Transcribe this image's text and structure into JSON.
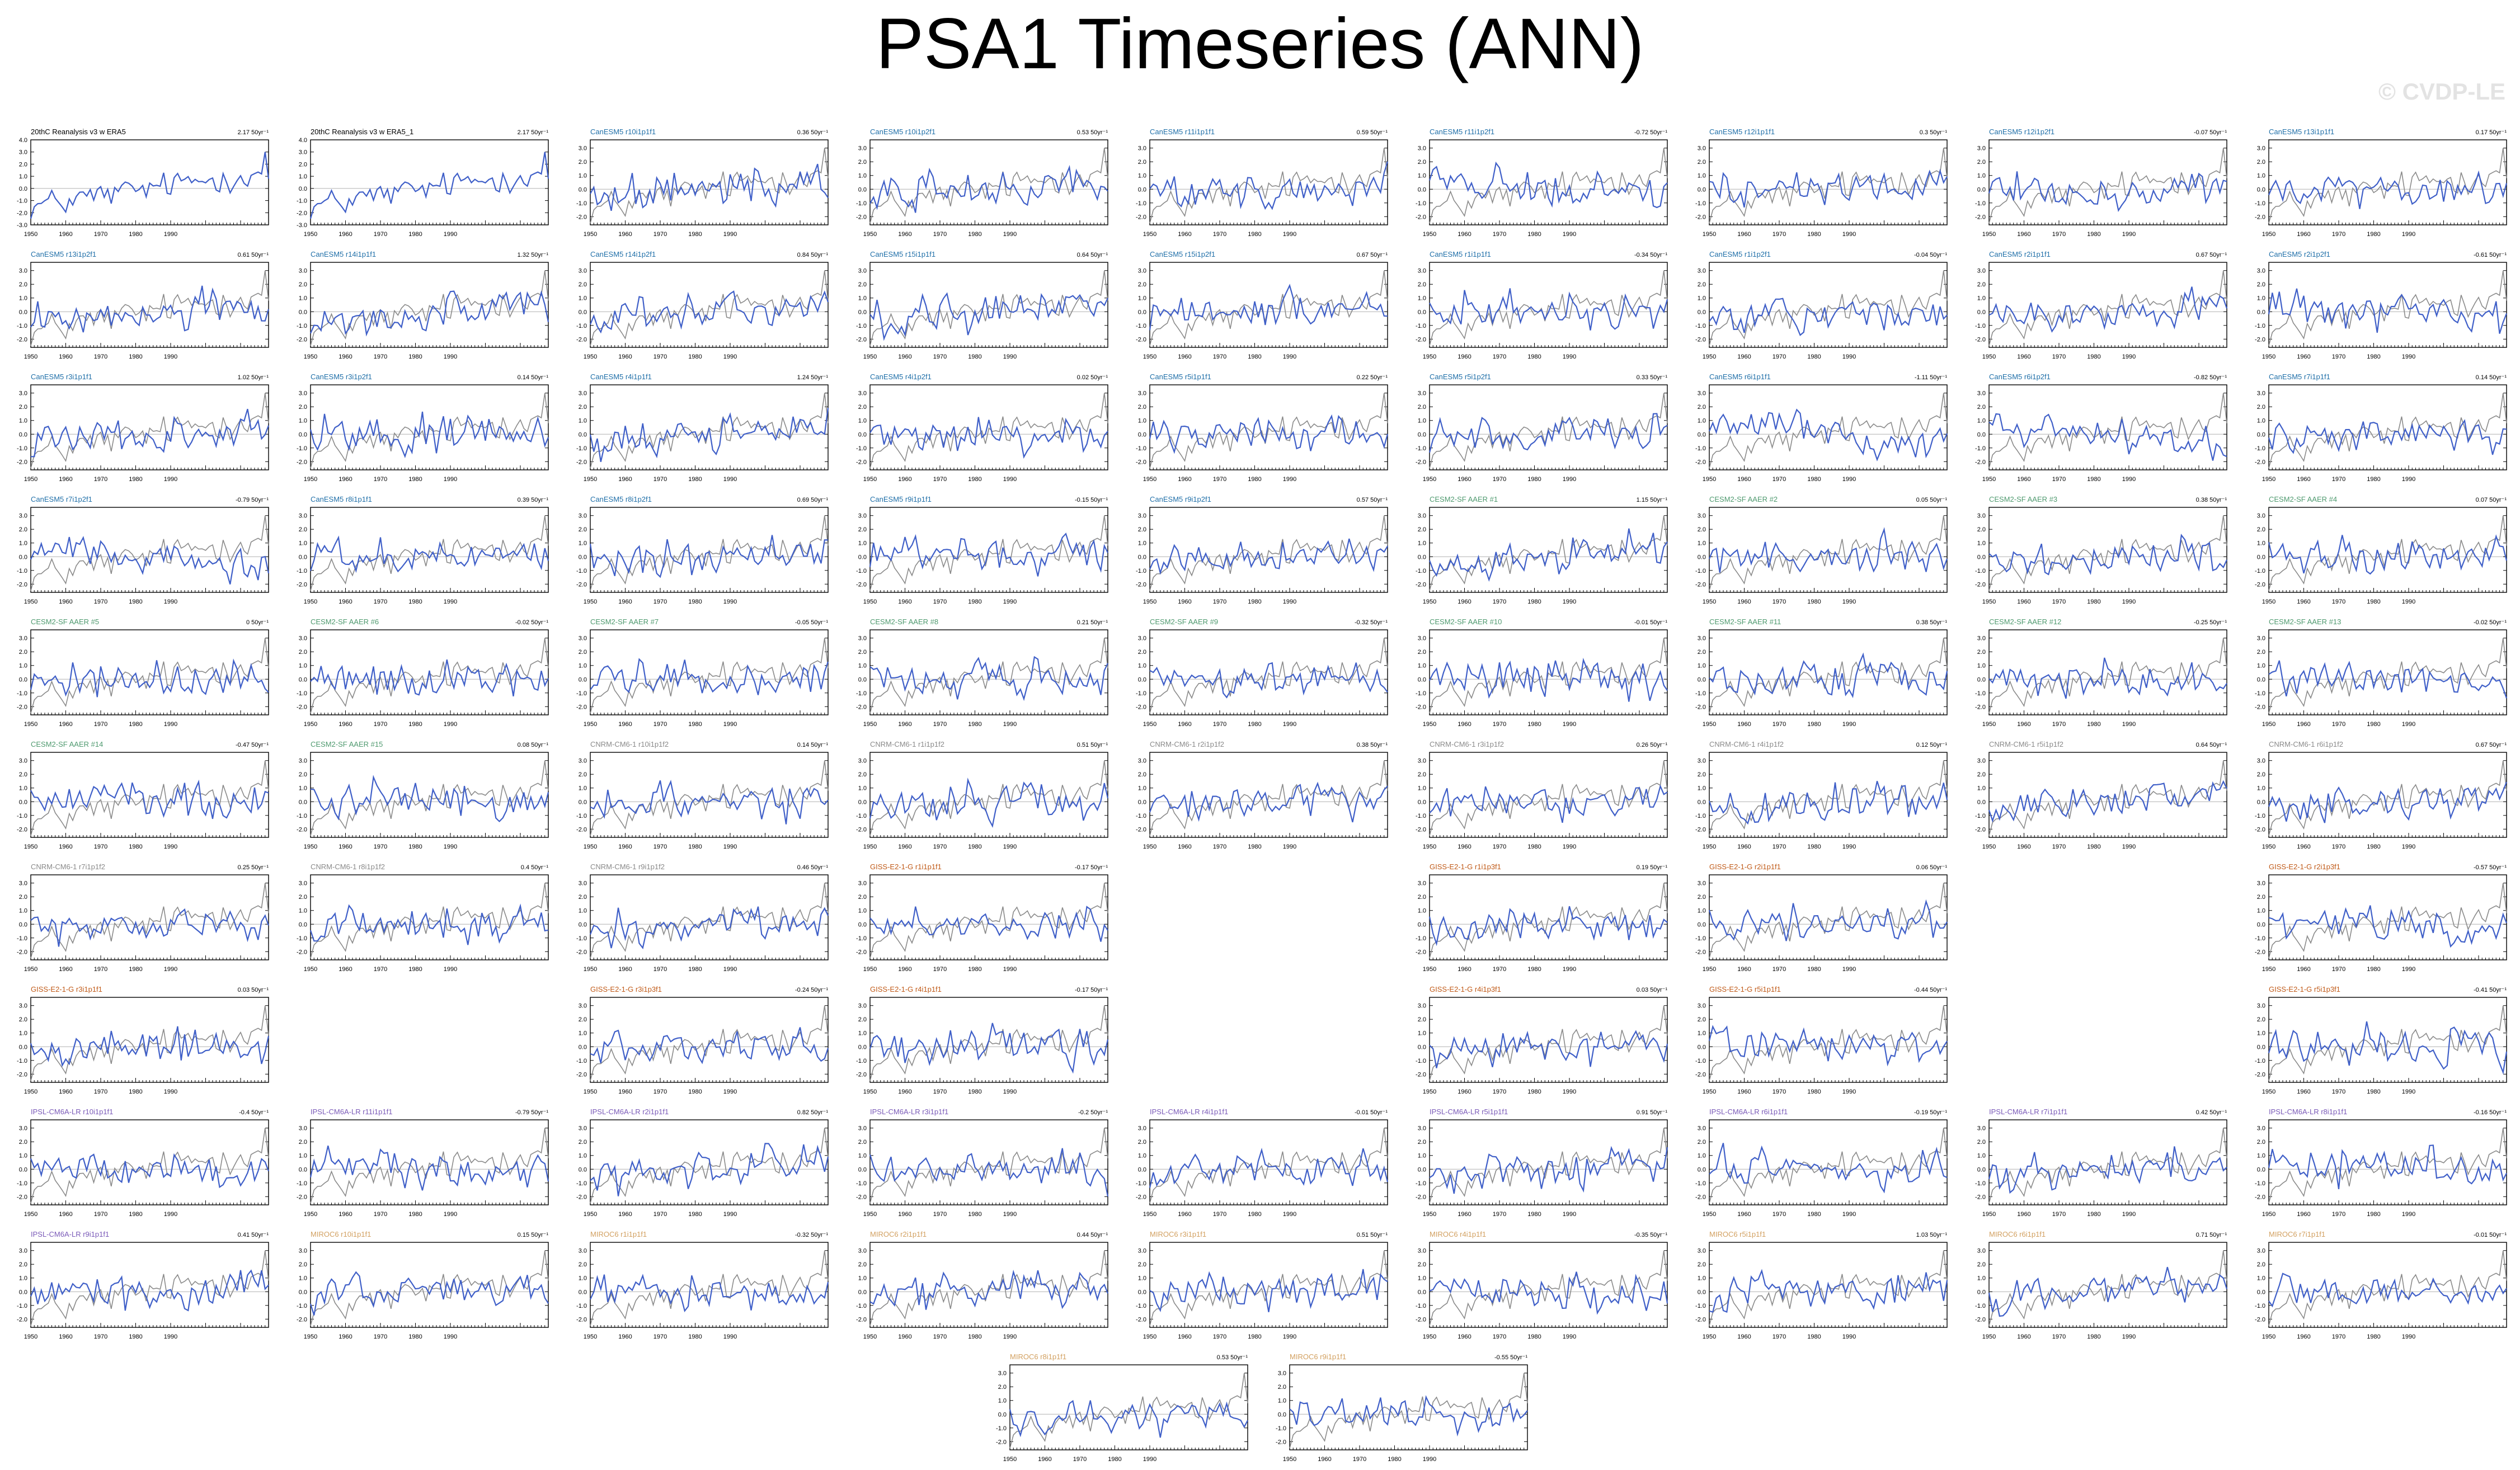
{
  "title": "PSA1 Timeseries (ANN)",
  "watermark": "© CVDP-LE",
  "colors": {
    "model_line": "#3f5fc8",
    "obs_line": "#8a8a8a",
    "CanESM5": "#1f6fa8",
    "CESM2-SF AAER": "#4f9a6f",
    "CNRM-CM6-1": "#8a8a8a",
    "GISS-E2-1-G": "#c05a18",
    "IPSL-CM6A-LR": "#7a5ab8",
    "MIROC6": "#d2a060",
    "obs": "#000000"
  },
  "chart_data": {
    "type": "line",
    "years": [
      1950,
      2018
    ],
    "x_ticks": [
      1950,
      1960,
      1970,
      1980,
      1990
    ],
    "y_ticks_full": [
      "4.0",
      "3.0",
      "2.0",
      "1.0",
      "0.0",
      "-1.0",
      "-2.0",
      "-3.0"
    ],
    "panels": [
      {
        "title": "20thC Reanalysis v3 w ERA5",
        "trend": "2.17 50yr⁻¹",
        "group": "obs",
        "row": 0,
        "col": 0,
        "ylim": [
          -3,
          4
        ]
      },
      {
        "title": "20thC Reanalysis v3 w ERA5_1",
        "trend": "2.17 50yr⁻¹",
        "group": "obs",
        "row": 0,
        "col": 1,
        "ylim": [
          -3,
          4
        ]
      },
      {
        "title": "CanESM5 r10i1p1f1",
        "trend": "0.36 50yr⁻¹",
        "group": "CanESM5",
        "row": 0,
        "col": 2
      },
      {
        "title": "CanESM5 r10i1p2f1",
        "trend": "0.53 50yr⁻¹",
        "group": "CanESM5",
        "row": 0,
        "col": 3
      },
      {
        "title": "CanESM5 r11i1p1f1",
        "trend": "0.59 50yr⁻¹",
        "group": "CanESM5",
        "row": 0,
        "col": 4
      },
      {
        "title": "CanESM5 r11i1p2f1",
        "trend": "-0.72 50yr⁻¹",
        "group": "CanESM5",
        "row": 0,
        "col": 5
      },
      {
        "title": "CanESM5 r12i1p1f1",
        "trend": "0.3 50yr⁻¹",
        "group": "CanESM5",
        "row": 0,
        "col": 6
      },
      {
        "title": "CanESM5 r12i1p2f1",
        "trend": "-0.07 50yr⁻¹",
        "group": "CanESM5",
        "row": 0,
        "col": 7
      },
      {
        "title": "CanESM5 r13i1p1f1",
        "trend": "0.17 50yr⁻¹",
        "group": "CanESM5",
        "row": 0,
        "col": 8
      },
      {
        "title": "CanESM5 r13i1p2f1",
        "trend": "0.61 50yr⁻¹",
        "group": "CanESM5",
        "row": 1,
        "col": 0
      },
      {
        "title": "CanESM5 r14i1p1f1",
        "trend": "1.32 50yr⁻¹",
        "group": "CanESM5",
        "row": 1,
        "col": 1
      },
      {
        "title": "CanESM5 r14i1p2f1",
        "trend": "0.84 50yr⁻¹",
        "group": "CanESM5",
        "row": 1,
        "col": 2
      },
      {
        "title": "CanESM5 r15i1p1f1",
        "trend": "0.64 50yr⁻¹",
        "group": "CanESM5",
        "row": 1,
        "col": 3
      },
      {
        "title": "CanESM5 r15i1p2f1",
        "trend": "0.67 50yr⁻¹",
        "group": "CanESM5",
        "row": 1,
        "col": 4
      },
      {
        "title": "CanESM5 r1i1p1f1",
        "trend": "-0.34 50yr⁻¹",
        "group": "CanESM5",
        "row": 1,
        "col": 5
      },
      {
        "title": "CanESM5 r1i1p2f1",
        "trend": "-0.04 50yr⁻¹",
        "group": "CanESM5",
        "row": 1,
        "col": 6
      },
      {
        "title": "CanESM5 r2i1p1f1",
        "trend": "0.67 50yr⁻¹",
        "group": "CanESM5",
        "row": 1,
        "col": 7
      },
      {
        "title": "CanESM5 r2i1p2f1",
        "trend": "-0.61 50yr⁻¹",
        "group": "CanESM5",
        "row": 1,
        "col": 8
      },
      {
        "title": "CanESM5 r3i1p1f1",
        "trend": "1.02 50yr⁻¹",
        "group": "CanESM5",
        "row": 2,
        "col": 0
      },
      {
        "title": "CanESM5 r3i1p2f1",
        "trend": "0.14 50yr⁻¹",
        "group": "CanESM5",
        "row": 2,
        "col": 1
      },
      {
        "title": "CanESM5 r4i1p1f1",
        "trend": "1.24 50yr⁻¹",
        "group": "CanESM5",
        "row": 2,
        "col": 2
      },
      {
        "title": "CanESM5 r4i1p2f1",
        "trend": "0.02 50yr⁻¹",
        "group": "CanESM5",
        "row": 2,
        "col": 3
      },
      {
        "title": "CanESM5 r5i1p1f1",
        "trend": "0.22 50yr⁻¹",
        "group": "CanESM5",
        "row": 2,
        "col": 4
      },
      {
        "title": "CanESM5 r5i1p2f1",
        "trend": "0.33 50yr⁻¹",
        "group": "CanESM5",
        "row": 2,
        "col": 5
      },
      {
        "title": "CanESM5 r6i1p1f1",
        "trend": "-1.11 50yr⁻¹",
        "group": "CanESM5",
        "row": 2,
        "col": 6
      },
      {
        "title": "CanESM5 r6i1p2f1",
        "trend": "-0.82 50yr⁻¹",
        "group": "CanESM5",
        "row": 2,
        "col": 7
      },
      {
        "title": "CanESM5 r7i1p1f1",
        "trend": "0.14 50yr⁻¹",
        "group": "CanESM5",
        "row": 2,
        "col": 8
      },
      {
        "title": "CanESM5 r7i1p2f1",
        "trend": "-0.79 50yr⁻¹",
        "group": "CanESM5",
        "row": 3,
        "col": 0
      },
      {
        "title": "CanESM5 r8i1p1f1",
        "trend": "0.39 50yr⁻¹",
        "group": "CanESM5",
        "row": 3,
        "col": 1
      },
      {
        "title": "CanESM5 r8i1p2f1",
        "trend": "0.69 50yr⁻¹",
        "group": "CanESM5",
        "row": 3,
        "col": 2
      },
      {
        "title": "CanESM5 r9i1p1f1",
        "trend": "-0.15 50yr⁻¹",
        "group": "CanESM5",
        "row": 3,
        "col": 3
      },
      {
        "title": "CanESM5 r9i1p2f1",
        "trend": "0.57 50yr⁻¹",
        "group": "CanESM5",
        "row": 3,
        "col": 4
      },
      {
        "title": "CESM2-SF AAER #1",
        "trend": "1.15 50yr⁻¹",
        "group": "CESM2-SF AAER",
        "row": 3,
        "col": 5
      },
      {
        "title": "CESM2-SF AAER #2",
        "trend": "0.05 50yr⁻¹",
        "group": "CESM2-SF AAER",
        "row": 3,
        "col": 6
      },
      {
        "title": "CESM2-SF AAER #3",
        "trend": "0.38 50yr⁻¹",
        "group": "CESM2-SF AAER",
        "row": 3,
        "col": 7
      },
      {
        "title": "CESM2-SF AAER #4",
        "trend": "0.07 50yr⁻¹",
        "group": "CESM2-SF AAER",
        "row": 3,
        "col": 8
      },
      {
        "title": "CESM2-SF AAER #5",
        "trend": "0 50yr⁻¹",
        "group": "CESM2-SF AAER",
        "row": 4,
        "col": 0
      },
      {
        "title": "CESM2-SF AAER #6",
        "trend": "-0.02 50yr⁻¹",
        "group": "CESM2-SF AAER",
        "row": 4,
        "col": 1
      },
      {
        "title": "CESM2-SF AAER #7",
        "trend": "-0.05 50yr⁻¹",
        "group": "CESM2-SF AAER",
        "row": 4,
        "col": 2
      },
      {
        "title": "CESM2-SF AAER #8",
        "trend": "0.21 50yr⁻¹",
        "group": "CESM2-SF AAER",
        "row": 4,
        "col": 3
      },
      {
        "title": "CESM2-SF AAER #9",
        "trend": "-0.32 50yr⁻¹",
        "group": "CESM2-SF AAER",
        "row": 4,
        "col": 4
      },
      {
        "title": "CESM2-SF AAER #10",
        "trend": "-0.01 50yr⁻¹",
        "group": "CESM2-SF AAER",
        "row": 4,
        "col": 5
      },
      {
        "title": "CESM2-SF AAER #11",
        "trend": "0.38 50yr⁻¹",
        "group": "CESM2-SF AAER",
        "row": 4,
        "col": 6
      },
      {
        "title": "CESM2-SF AAER #12",
        "trend": "-0.25 50yr⁻¹",
        "group": "CESM2-SF AAER",
        "row": 4,
        "col": 7
      },
      {
        "title": "CESM2-SF AAER #13",
        "trend": "-0.02 50yr⁻¹",
        "group": "CESM2-SF AAER",
        "row": 4,
        "col": 8
      },
      {
        "title": "CESM2-SF AAER #14",
        "trend": "-0.47 50yr⁻¹",
        "group": "CESM2-SF AAER",
        "row": 5,
        "col": 0
      },
      {
        "title": "CESM2-SF AAER #15",
        "trend": "0.08 50yr⁻¹",
        "group": "CESM2-SF AAER",
        "row": 5,
        "col": 1
      },
      {
        "title": "CNRM-CM6-1 r10i1p1f2",
        "trend": "0.14 50yr⁻¹",
        "group": "CNRM-CM6-1",
        "row": 5,
        "col": 2
      },
      {
        "title": "CNRM-CM6-1 r1i1p1f2",
        "trend": "0.51 50yr⁻¹",
        "group": "CNRM-CM6-1",
        "row": 5,
        "col": 3
      },
      {
        "title": "CNRM-CM6-1 r2i1p1f2",
        "trend": "0.38 50yr⁻¹",
        "group": "CNRM-CM6-1",
        "row": 5,
        "col": 4
      },
      {
        "title": "CNRM-CM6-1 r3i1p1f2",
        "trend": "0.26 50yr⁻¹",
        "group": "CNRM-CM6-1",
        "row": 5,
        "col": 5
      },
      {
        "title": "CNRM-CM6-1 r4i1p1f2",
        "trend": "0.12 50yr⁻¹",
        "group": "CNRM-CM6-1",
        "row": 5,
        "col": 6
      },
      {
        "title": "CNRM-CM6-1 r5i1p1f2",
        "trend": "0.64 50yr⁻¹",
        "group": "CNRM-CM6-1",
        "row": 5,
        "col": 7
      },
      {
        "title": "CNRM-CM6-1 r6i1p1f2",
        "trend": "0.67 50yr⁻¹",
        "group": "CNRM-CM6-1",
        "row": 5,
        "col": 8
      },
      {
        "title": "CNRM-CM6-1 r7i1p1f2",
        "trend": "0.25 50yr⁻¹",
        "group": "CNRM-CM6-1",
        "row": 6,
        "col": 0
      },
      {
        "title": "CNRM-CM6-1 r8i1p1f2",
        "trend": "0.4 50yr⁻¹",
        "group": "CNRM-CM6-1",
        "row": 6,
        "col": 1
      },
      {
        "title": "CNRM-CM6-1 r9i1p1f2",
        "trend": "0.46 50yr⁻¹",
        "group": "CNRM-CM6-1",
        "row": 6,
        "col": 2
      },
      {
        "title": "GISS-E2-1-G r1i1p1f1",
        "trend": "-0.17 50yr⁻¹",
        "group": "GISS-E2-1-G",
        "row": 6,
        "col": 3
      },
      {
        "title": "GISS-E2-1-G r1i1p3f1",
        "trend": "0.19 50yr⁻¹",
        "group": "GISS-E2-1-G",
        "row": 6,
        "col": 5
      },
      {
        "title": "GISS-E2-1-G r2i1p1f1",
        "trend": "0.06 50yr⁻¹",
        "group": "GISS-E2-1-G",
        "row": 6,
        "col": 6
      },
      {
        "title": "GISS-E2-1-G r2i1p3f1",
        "trend": "-0.57 50yr⁻¹",
        "group": "GISS-E2-1-G",
        "row": 6,
        "col": 8
      },
      {
        "title": "GISS-E2-1-G r3i1p1f1",
        "trend": "0.03 50yr⁻¹",
        "group": "GISS-E2-1-G",
        "row": 7,
        "col": 0
      },
      {
        "title": "GISS-E2-1-G r3i1p3f1",
        "trend": "-0.24 50yr⁻¹",
        "group": "GISS-E2-1-G",
        "row": 7,
        "col": 2
      },
      {
        "title": "GISS-E2-1-G r4i1p1f1",
        "trend": "-0.17 50yr⁻¹",
        "group": "GISS-E2-1-G",
        "row": 7,
        "col": 3
      },
      {
        "title": "GISS-E2-1-G r4i1p3f1",
        "trend": "0.03 50yr⁻¹",
        "group": "GISS-E2-1-G",
        "row": 7,
        "col": 5
      },
      {
        "title": "GISS-E2-1-G r5i1p1f1",
        "trend": "-0.44 50yr⁻¹",
        "group": "GISS-E2-1-G",
        "row": 7,
        "col": 6
      },
      {
        "title": "GISS-E2-1-G r5i1p3f1",
        "trend": "-0.41 50yr⁻¹",
        "group": "GISS-E2-1-G",
        "row": 7,
        "col": 8
      },
      {
        "title": "IPSL-CM6A-LR r10i1p1f1",
        "trend": "-0.4 50yr⁻¹",
        "group": "IPSL-CM6A-LR",
        "row": 8,
        "col": 0
      },
      {
        "title": "IPSL-CM6A-LR r11i1p1f1",
        "trend": "-0.79 50yr⁻¹",
        "group": "IPSL-CM6A-LR",
        "row": 8,
        "col": 1
      },
      {
        "title": "IPSL-CM6A-LR r2i1p1f1",
        "trend": "0.82 50yr⁻¹",
        "group": "IPSL-CM6A-LR",
        "row": 8,
        "col": 2
      },
      {
        "title": "IPSL-CM6A-LR r3i1p1f1",
        "trend": "-0.2 50yr⁻¹",
        "group": "IPSL-CM6A-LR",
        "row": 8,
        "col": 3
      },
      {
        "title": "IPSL-CM6A-LR r4i1p1f1",
        "trend": "-0.01 50yr⁻¹",
        "group": "IPSL-CM6A-LR",
        "row": 8,
        "col": 4
      },
      {
        "title": "IPSL-CM6A-LR r5i1p1f1",
        "trend": "0.91 50yr⁻¹",
        "group": "IPSL-CM6A-LR",
        "row": 8,
        "col": 5
      },
      {
        "title": "IPSL-CM6A-LR r6i1p1f1",
        "trend": "-0.19 50yr⁻¹",
        "group": "IPSL-CM6A-LR",
        "row": 8,
        "col": 6
      },
      {
        "title": "IPSL-CM6A-LR r7i1p1f1",
        "trend": "0.42 50yr⁻¹",
        "group": "IPSL-CM6A-LR",
        "row": 8,
        "col": 7
      },
      {
        "title": "IPSL-CM6A-LR r8i1p1f1",
        "trend": "-0.16 50yr⁻¹",
        "group": "IPSL-CM6A-LR",
        "row": 8,
        "col": 8
      },
      {
        "title": "IPSL-CM6A-LR r9i1p1f1",
        "trend": "0.41 50yr⁻¹",
        "group": "IPSL-CM6A-LR",
        "row": 9,
        "col": 0
      },
      {
        "title": "MIROC6 r10i1p1f1",
        "trend": "0.15 50yr⁻¹",
        "group": "MIROC6",
        "row": 9,
        "col": 1
      },
      {
        "title": "MIROC6 r1i1p1f1",
        "trend": "-0.32 50yr⁻¹",
        "group": "MIROC6",
        "row": 9,
        "col": 2
      },
      {
        "title": "MIROC6 r2i1p1f1",
        "trend": "0.44 50yr⁻¹",
        "group": "MIROC6",
        "row": 9,
        "col": 3
      },
      {
        "title": "MIROC6 r3i1p1f1",
        "trend": "0.51 50yr⁻¹",
        "group": "MIROC6",
        "row": 9,
        "col": 4
      },
      {
        "title": "MIROC6 r4i1p1f1",
        "trend": "-0.35 50yr⁻¹",
        "group": "MIROC6",
        "row": 9,
        "col": 5
      },
      {
        "title": "MIROC6 r5i1p1f1",
        "trend": "1.03 50yr⁻¹",
        "group": "MIROC6",
        "row": 9,
        "col": 6
      },
      {
        "title": "MIROC6 r6i1p1f1",
        "trend": "0.71 50yr⁻¹",
        "group": "MIROC6",
        "row": 9,
        "col": 7
      },
      {
        "title": "MIROC6 r7i1p1f1",
        "trend": "-0.01 50yr⁻¹",
        "group": "MIROC6",
        "row": 9,
        "col": 8
      },
      {
        "title": "MIROC6 r8i1p1f1",
        "trend": "0.53 50yr⁻¹",
        "group": "MIROC6",
        "row": 10,
        "col": 3.5
      },
      {
        "title": "MIROC6 r9i1p1f1",
        "trend": "-0.55 50yr⁻¹",
        "group": "MIROC6",
        "row": 10,
        "col": 4.5
      }
    ]
  }
}
